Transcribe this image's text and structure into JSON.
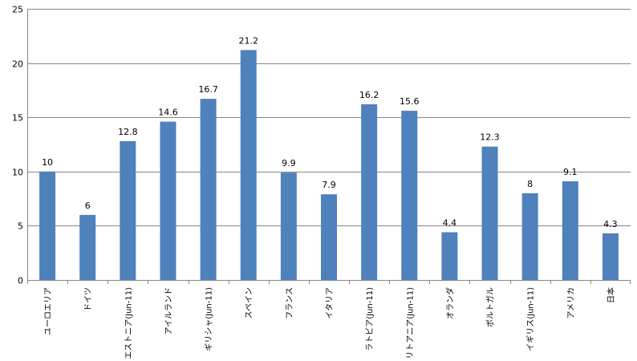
{
  "chart_data": {
    "type": "bar",
    "categories": [
      "ユーロエリア",
      "ドイツ",
      "エストニア(Jun-11)",
      "アイルランド",
      "ギリシャ(Jun-11)",
      "スペイン",
      "フランス",
      "イタリア",
      "ラトビア(Jun-11)",
      "リトアニア(Jun-11)",
      "オランダ",
      "ポルトガル",
      "イギリス(Jun-11)",
      "アメリカ",
      "日本"
    ],
    "values": [
      10,
      6,
      12.8,
      14.6,
      16.7,
      21.2,
      9.9,
      7.9,
      16.2,
      15.6,
      4.4,
      12.3,
      8,
      9.1,
      4.3
    ],
    "data_labels": [
      "10",
      "6",
      "12.8",
      "14.6",
      "16.7",
      "21.2",
      "9.9",
      "7.9",
      "16.2",
      "15.6",
      "4.4",
      "12.3",
      "8",
      "9.1",
      "4.3"
    ],
    "y_ticks": [
      "0",
      "5",
      "10",
      "15",
      "20",
      "25"
    ],
    "ylim": [
      0,
      25
    ],
    "grid": true,
    "legend": "none",
    "colors": {
      "bar": "#4F81BD",
      "grid": "#868686",
      "axis": "#868686"
    }
  }
}
